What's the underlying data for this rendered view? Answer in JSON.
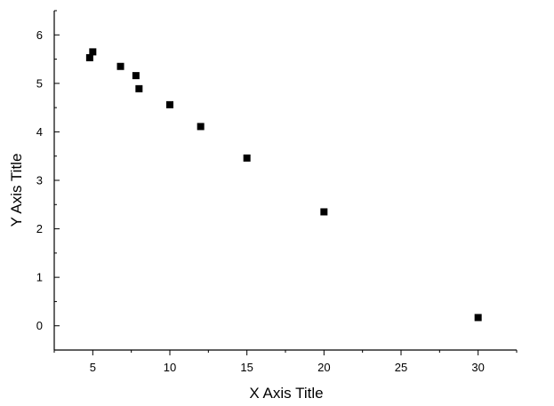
{
  "chart_data": {
    "type": "scatter",
    "xlabel": "X Axis Title",
    "ylabel": "Y Axis Title",
    "xlim": [
      2.5,
      32.5
    ],
    "ylim": [
      -0.5,
      6.5
    ],
    "x_ticks": [
      5,
      10,
      15,
      20,
      25,
      30
    ],
    "y_ticks": [
      0,
      1,
      2,
      3,
      4,
      5,
      6
    ],
    "grid": false,
    "series": [
      {
        "marker": "square",
        "color": "#000000",
        "points": [
          {
            "x": 4.8,
            "y": 5.53
          },
          {
            "x": 5.0,
            "y": 5.65
          },
          {
            "x": 6.8,
            "y": 5.35
          },
          {
            "x": 7.8,
            "y": 5.16
          },
          {
            "x": 8.0,
            "y": 4.89
          },
          {
            "x": 10.0,
            "y": 4.56
          },
          {
            "x": 12.0,
            "y": 4.11
          },
          {
            "x": 15.0,
            "y": 3.46
          },
          {
            "x": 20.0,
            "y": 2.35
          },
          {
            "x": 30.0,
            "y": 0.17
          }
        ]
      }
    ]
  }
}
